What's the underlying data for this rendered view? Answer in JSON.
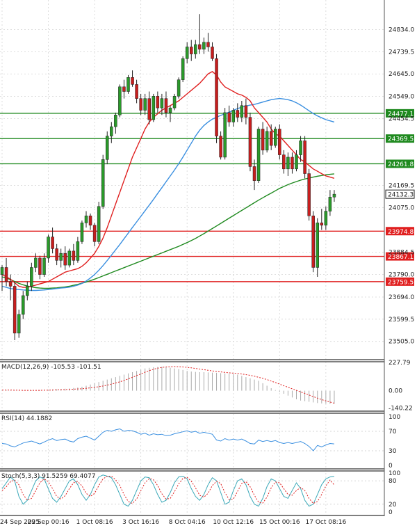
{
  "chart_data": {
    "type": "candlestick",
    "title": "",
    "main": {
      "ylim": [
        23430,
        24960
      ],
      "y_ticks": [
        24834.0,
        24739.5,
        24645.0,
        24549.0,
        24454.5,
        24169.5,
        24075.0,
        23884.5,
        23790.0,
        23694.0,
        23599.5,
        23505.0
      ],
      "x_ticks": [
        {
          "label": "24 Sep 2025",
          "index": 0
        },
        {
          "label": "29 Sep 00:16",
          "index": 11
        },
        {
          "label": "1 Oct 08:16",
          "index": 22
        },
        {
          "label": "3 Oct 16:16",
          "index": 33
        },
        {
          "label": "8 Oct 04:16",
          "index": 44
        },
        {
          "label": "10 Oct 12:16",
          "index": 55
        },
        {
          "label": "15 Oct 00:16",
          "index": 66
        },
        {
          "label": "17 Oct 08:16",
          "index": 77
        }
      ],
      "levels": [
        {
          "value": 24477.1,
          "label": "24477.1",
          "color": "#1f8a1f"
        },
        {
          "value": 24369.5,
          "label": "24369.5",
          "color": "#1f8a1f"
        },
        {
          "value": 24261.8,
          "label": "24261.8",
          "color": "#1f8a1f"
        },
        {
          "value": 23974.8,
          "label": "23974.8",
          "color": "#e02020"
        },
        {
          "value": 23867.1,
          "label": "23867.1",
          "color": "#e02020"
        },
        {
          "value": 23759.5,
          "label": "23759.5",
          "color": "#e02020"
        }
      ],
      "current": {
        "value": 24132.3,
        "label": "24132.3"
      },
      "candles": [
        {
          "o": 23790,
          "h": 23830,
          "l": 23720,
          "c": 23820
        },
        {
          "o": 23820,
          "h": 23860,
          "l": 23740,
          "c": 23760
        },
        {
          "o": 23760,
          "h": 23790,
          "l": 23680,
          "c": 23740
        },
        {
          "o": 23740,
          "h": 23760,
          "l": 23510,
          "c": 23540
        },
        {
          "o": 23540,
          "h": 23640,
          "l": 23520,
          "c": 23620
        },
        {
          "o": 23620,
          "h": 23720,
          "l": 23600,
          "c": 23700
        },
        {
          "o": 23700,
          "h": 23760,
          "l": 23680,
          "c": 23740
        },
        {
          "o": 23740,
          "h": 23840,
          "l": 23720,
          "c": 23820
        },
        {
          "o": 23820,
          "h": 23880,
          "l": 23800,
          "c": 23860
        },
        {
          "o": 23860,
          "h": 23870,
          "l": 23770,
          "c": 23790
        },
        {
          "o": 23790,
          "h": 23880,
          "l": 23780,
          "c": 23860
        },
        {
          "o": 23860,
          "h": 23960,
          "l": 23840,
          "c": 23950
        },
        {
          "o": 23950,
          "h": 23990,
          "l": 23880,
          "c": 23900
        },
        {
          "o": 23900,
          "h": 23920,
          "l": 23830,
          "c": 23850
        },
        {
          "o": 23850,
          "h": 23900,
          "l": 23820,
          "c": 23880
        },
        {
          "o": 23880,
          "h": 23910,
          "l": 23810,
          "c": 23830
        },
        {
          "o": 23830,
          "h": 23900,
          "l": 23820,
          "c": 23890
        },
        {
          "o": 23890,
          "h": 23920,
          "l": 23830,
          "c": 23850
        },
        {
          "o": 23850,
          "h": 23950,
          "l": 23840,
          "c": 23930
        },
        {
          "o": 23930,
          "h": 24020,
          "l": 23920,
          "c": 24010
        },
        {
          "o": 24010,
          "h": 24060,
          "l": 23990,
          "c": 24040
        },
        {
          "o": 24040,
          "h": 24050,
          "l": 23980,
          "c": 24000
        },
        {
          "o": 24000,
          "h": 24010,
          "l": 23910,
          "c": 23930
        },
        {
          "o": 23930,
          "h": 24100,
          "l": 23920,
          "c": 24080
        },
        {
          "o": 24080,
          "h": 24300,
          "l": 24070,
          "c": 24280
        },
        {
          "o": 24280,
          "h": 24400,
          "l": 24260,
          "c": 24380
        },
        {
          "o": 24380,
          "h": 24440,
          "l": 24350,
          "c": 24420
        },
        {
          "o": 24420,
          "h": 24480,
          "l": 24390,
          "c": 24470
        },
        {
          "o": 24470,
          "h": 24600,
          "l": 24460,
          "c": 24590
        },
        {
          "o": 24590,
          "h": 24620,
          "l": 24540,
          "c": 24570
        },
        {
          "o": 24570,
          "h": 24640,
          "l": 24560,
          "c": 24630
        },
        {
          "o": 24630,
          "h": 24660,
          "l": 24590,
          "c": 24600
        },
        {
          "o": 24600,
          "h": 24620,
          "l": 24520,
          "c": 24540
        },
        {
          "o": 24540,
          "h": 24560,
          "l": 24470,
          "c": 24490
        },
        {
          "o": 24490,
          "h": 24560,
          "l": 24470,
          "c": 24540
        },
        {
          "o": 24540,
          "h": 24570,
          "l": 24430,
          "c": 24450
        },
        {
          "o": 24450,
          "h": 24560,
          "l": 24440,
          "c": 24550
        },
        {
          "o": 24550,
          "h": 24570,
          "l": 24480,
          "c": 24500
        },
        {
          "o": 24500,
          "h": 24560,
          "l": 24470,
          "c": 24540
        },
        {
          "o": 24540,
          "h": 24570,
          "l": 24460,
          "c": 24480
        },
        {
          "o": 24480,
          "h": 24510,
          "l": 24440,
          "c": 24500
        },
        {
          "o": 24500,
          "h": 24560,
          "l": 24490,
          "c": 24550
        },
        {
          "o": 24550,
          "h": 24630,
          "l": 24540,
          "c": 24620
        },
        {
          "o": 24620,
          "h": 24720,
          "l": 24610,
          "c": 24710
        },
        {
          "o": 24710,
          "h": 24780,
          "l": 24690,
          "c": 24760
        },
        {
          "o": 24760,
          "h": 24790,
          "l": 24700,
          "c": 24730
        },
        {
          "o": 24730,
          "h": 24790,
          "l": 24710,
          "c": 24770
        },
        {
          "o": 24770,
          "h": 24900,
          "l": 24730,
          "c": 24750
        },
        {
          "o": 24750,
          "h": 24800,
          "l": 24730,
          "c": 24780
        },
        {
          "o": 24780,
          "h": 24820,
          "l": 24740,
          "c": 24760
        },
        {
          "o": 24760,
          "h": 24780,
          "l": 24700,
          "c": 24710
        },
        {
          "o": 24710,
          "h": 24730,
          "l": 24350,
          "c": 24380
        },
        {
          "o": 24380,
          "h": 24400,
          "l": 24280,
          "c": 24290
        },
        {
          "o": 24290,
          "h": 24500,
          "l": 24280,
          "c": 24480
        },
        {
          "o": 24480,
          "h": 24510,
          "l": 24420,
          "c": 24440
        },
        {
          "o": 24440,
          "h": 24500,
          "l": 24420,
          "c": 24490
        },
        {
          "o": 24490,
          "h": 24520,
          "l": 24440,
          "c": 24460
        },
        {
          "o": 24460,
          "h": 24530,
          "l": 24440,
          "c": 24510
        },
        {
          "o": 24510,
          "h": 24540,
          "l": 24430,
          "c": 24460
        },
        {
          "o": 24460,
          "h": 24480,
          "l": 24230,
          "c": 24250
        },
        {
          "o": 24250,
          "h": 24280,
          "l": 24150,
          "c": 24190
        },
        {
          "o": 24190,
          "h": 24420,
          "l": 24180,
          "c": 24410
        },
        {
          "o": 24410,
          "h": 24440,
          "l": 24300,
          "c": 24320
        },
        {
          "o": 24320,
          "h": 24420,
          "l": 24310,
          "c": 24400
        },
        {
          "o": 24400,
          "h": 24430,
          "l": 24320,
          "c": 24340
        },
        {
          "o": 24340,
          "h": 24420,
          "l": 24330,
          "c": 24410
        },
        {
          "o": 24410,
          "h": 24430,
          "l": 24280,
          "c": 24300
        },
        {
          "o": 24300,
          "h": 24320,
          "l": 24220,
          "c": 24240
        },
        {
          "o": 24240,
          "h": 24310,
          "l": 24210,
          "c": 24290
        },
        {
          "o": 24290,
          "h": 24310,
          "l": 24220,
          "c": 24240
        },
        {
          "o": 24240,
          "h": 24320,
          "l": 24230,
          "c": 24300
        },
        {
          "o": 24300,
          "h": 24380,
          "l": 24270,
          "c": 24360
        },
        {
          "o": 24360,
          "h": 24380,
          "l": 24200,
          "c": 24220
        },
        {
          "o": 24220,
          "h": 24240,
          "l": 24020,
          "c": 24040
        },
        {
          "o": 24040,
          "h": 24060,
          "l": 23800,
          "c": 23820
        },
        {
          "o": 23820,
          "h": 24030,
          "l": 23780,
          "c": 24010
        },
        {
          "o": 24010,
          "h": 24070,
          "l": 23980,
          "c": 24000
        },
        {
          "o": 24000,
          "h": 24080,
          "l": 23980,
          "c": 24060
        },
        {
          "o": 24060,
          "h": 24150,
          "l": 24040,
          "c": 24120
        },
        {
          "o": 24120,
          "h": 24150,
          "l": 24100,
          "c": 24132.3
        }
      ],
      "ma_red": [
        23790,
        23780,
        23770,
        23755,
        23740,
        23735,
        23735,
        23740,
        23745,
        23750,
        23755,
        23760,
        23770,
        23780,
        23790,
        23800,
        23805,
        23810,
        23815,
        23825,
        23840,
        23860,
        23880,
        23910,
        23945,
        23990,
        24040,
        24090,
        24140,
        24190,
        24240,
        24290,
        24330,
        24370,
        24410,
        24440,
        24460,
        24475,
        24490,
        24500,
        24510,
        24520,
        24530,
        24545,
        24560,
        24575,
        24590,
        24605,
        24625,
        24645,
        24655,
        24640,
        24610,
        24590,
        24580,
        24570,
        24560,
        24555,
        24545,
        24530,
        24500,
        24480,
        24460,
        24440,
        24410,
        24390,
        24380,
        24360,
        24340,
        24320,
        24300,
        24280,
        24270,
        24255,
        24240,
        24230,
        24220,
        24210,
        24205,
        24200
      ],
      "ma_blue": [
        23740,
        23735,
        23730,
        23728,
        23726,
        23724,
        23723,
        23722,
        23722,
        23723,
        23724,
        23726,
        23728,
        23730,
        23732,
        23734,
        23736,
        23740,
        23745,
        23752,
        23762,
        23775,
        23790,
        23808,
        23828,
        23850,
        23872,
        23895,
        23918,
        23942,
        23966,
        23990,
        24014,
        24038,
        24062,
        24086,
        24110,
        24135,
        24160,
        24185,
        24210,
        24235,
        24262,
        24290,
        24320,
        24350,
        24380,
        24405,
        24425,
        24440,
        24452,
        24460,
        24468,
        24475,
        24482,
        24490,
        24497,
        24503,
        24508,
        24512,
        24515,
        24520,
        24525,
        24530,
        24535,
        24538,
        24540,
        24538,
        24535,
        24530,
        24522,
        24512,
        24500,
        24488,
        24476,
        24466,
        24458,
        24450,
        24445,
        24440
      ],
      "ma_green": [
        23780,
        23775,
        23768,
        23760,
        23752,
        23746,
        23741,
        23737,
        23734,
        23732,
        23731,
        23731,
        23732,
        23733,
        23735,
        23737,
        23740,
        23744,
        23748,
        23753,
        23758,
        23764,
        23770,
        23777,
        23784,
        23791,
        23798,
        23805,
        23812,
        23819,
        23826,
        23833,
        23840,
        23847,
        23854,
        23861,
        23868,
        23875,
        23882,
        23889,
        23896,
        23903,
        23910,
        23918,
        23926,
        23935,
        23944,
        23954,
        23964,
        23975,
        23986,
        23997,
        24008,
        24019,
        24030,
        24041,
        24052,
        24063,
        24074,
        24085,
        24096,
        24107,
        24117,
        24127,
        24137,
        24147,
        24157,
        24165,
        24173,
        24180,
        24186,
        24192,
        24197,
        24201,
        24205,
        24209,
        24212,
        24215,
        24217,
        24219
      ]
    },
    "macd": {
      "label": "MACD(12,26,9) -105.53 -101.51",
      "ylim": [
        -160,
        240
      ],
      "y_ticks": [
        227.79,
        0.0,
        -140.22
      ],
      "hist": [
        5,
        5,
        4,
        3,
        2,
        2,
        2,
        3,
        4,
        5,
        6,
        8,
        10,
        12,
        14,
        16,
        18,
        22,
        26,
        32,
        40,
        50,
        60,
        70,
        80,
        90,
        100,
        110,
        120,
        130,
        140,
        150,
        160,
        170,
        180,
        185,
        190,
        192,
        193,
        190,
        185,
        180,
        175,
        168,
        160,
        155,
        152,
        150,
        150,
        148,
        146,
        145,
        142,
        140,
        138,
        135,
        130,
        120,
        110,
        100,
        90,
        80,
        60,
        40,
        20,
        5,
        -10,
        -25,
        -40,
        -55,
        -70,
        -80,
        -85,
        -90,
        -95,
        -100,
        -103,
        -105,
        -106,
        -105.53
      ],
      "signal": [
        5,
        5,
        5,
        4,
        4,
        3,
        3,
        3,
        3,
        3,
        4,
        4,
        5,
        6,
        7,
        8,
        10,
        12,
        14,
        16,
        19,
        23,
        27,
        32,
        38,
        45,
        53,
        62,
        72,
        83,
        95,
        108,
        122,
        136,
        150,
        162,
        173,
        182,
        188,
        192,
        194,
        195,
        194,
        192,
        189,
        185,
        180,
        175,
        170,
        165,
        160,
        156,
        152,
        148,
        145,
        142,
        139,
        135,
        130,
        124,
        117,
        109,
        100,
        90,
        78,
        66,
        53,
        40,
        28,
        15,
        3,
        -10,
        -22,
        -35,
        -48,
        -60,
        -72,
        -82,
        -92,
        -101.51
      ]
    },
    "rsi": {
      "label": "RSI(14) 44.1882",
      "ylim": [
        0,
        100
      ],
      "y_ticks": [
        100,
        70,
        30,
        0
      ],
      "values": [
        45,
        44,
        40,
        38,
        42,
        46,
        48,
        50,
        47,
        44,
        48,
        52,
        55,
        51,
        53,
        54,
        50,
        48,
        55,
        58,
        60,
        56,
        52,
        60,
        68,
        72,
        70,
        73,
        75,
        70,
        72,
        71,
        68,
        64,
        66,
        62,
        65,
        63,
        64,
        61,
        62,
        65,
        67,
        69,
        71,
        68,
        70,
        66,
        68,
        66,
        64,
        52,
        50,
        55,
        52,
        54,
        52,
        54,
        50,
        45,
        44,
        52,
        49,
        51,
        49,
        51,
        47,
        45,
        47,
        45,
        47,
        49,
        45,
        39,
        30,
        41,
        38,
        42,
        45,
        44.19
      ]
    },
    "stoch": {
      "label": "Stoch(5,3,3) 91.5259 69.4077",
      "ylim": [
        0,
        100
      ],
      "y_ticks": [
        100,
        80,
        20,
        0
      ],
      "k": [
        60,
        75,
        90,
        80,
        40,
        20,
        30,
        55,
        80,
        90,
        85,
        60,
        35,
        25,
        40,
        60,
        80,
        85,
        70,
        45,
        30,
        45,
        70,
        90,
        95,
        92,
        88,
        70,
        45,
        20,
        15,
        30,
        55,
        80,
        90,
        88,
        70,
        45,
        25,
        30,
        50,
        75,
        90,
        92,
        85,
        60,
        40,
        30,
        45,
        70,
        88,
        80,
        50,
        20,
        25,
        55,
        80,
        85,
        70,
        40,
        20,
        15,
        35,
        65,
        85,
        80,
        60,
        40,
        35,
        55,
        75,
        60,
        30,
        15,
        20,
        45,
        70,
        85,
        90,
        91.53
      ],
      "d": [
        55,
        65,
        78,
        82,
        70,
        45,
        30,
        35,
        55,
        75,
        85,
        78,
        60,
        40,
        33,
        42,
        60,
        75,
        78,
        67,
        48,
        40,
        48,
        68,
        85,
        92,
        92,
        83,
        68,
        45,
        27,
        22,
        33,
        55,
        75,
        86,
        83,
        68,
        47,
        33,
        35,
        52,
        72,
        86,
        89,
        79,
        62,
        43,
        38,
        48,
        68,
        79,
        73,
        50,
        32,
        33,
        53,
        73,
        78,
        65,
        43,
        25,
        23,
        38,
        62,
        77,
        75,
        60,
        45,
        43,
        55,
        63,
        55,
        35,
        22,
        27,
        45,
        67,
        82,
        69.41
      ]
    }
  }
}
